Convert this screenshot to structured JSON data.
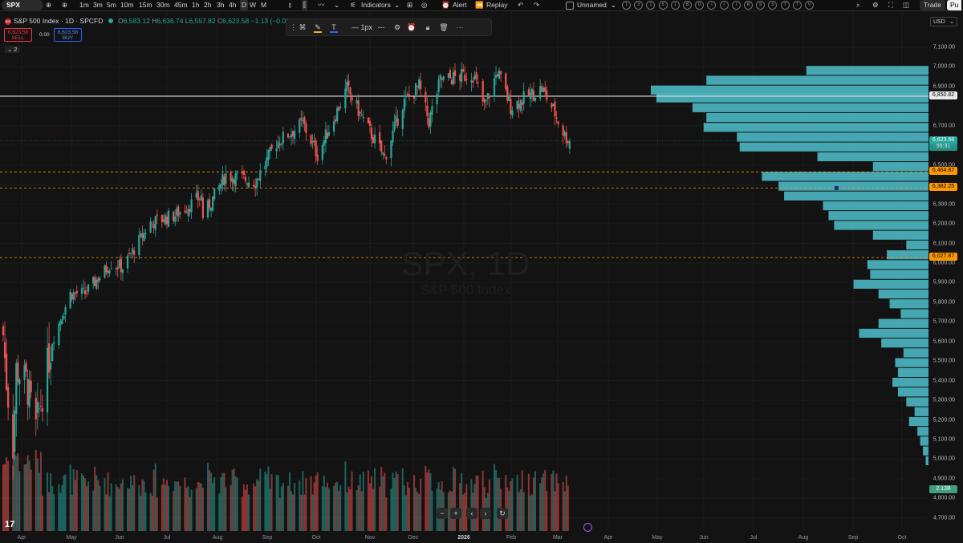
{
  "toolbar": {
    "symbol": "SPX",
    "timeframes": [
      "1m",
      "3m",
      "5m",
      "10m",
      "15m",
      "30m",
      "45m",
      "1h",
      "2h",
      "3h",
      "4h",
      "D",
      "W",
      "M"
    ],
    "active_timeframe": "D",
    "indicators_label": "Indicators",
    "alert_label": "Alert",
    "replay_label": "Replay",
    "layout_name": "Unnamed",
    "quick_circles": [
      "1",
      "3",
      "1",
      "5",
      "1",
      "B",
      "D",
      "I",
      "I",
      "I",
      "R",
      "S",
      "S",
      "T",
      "T",
      "V"
    ],
    "trade_label": "Trade",
    "publish_label": "Pu"
  },
  "legend": {
    "title": "S&P 500 Index · 1D · SPCFD",
    "o_label": "O",
    "open": "6,583.12",
    "h_label": "H",
    "high": "6,636.74",
    "l_label": "L",
    "low": "6,557.82",
    "c_label": "C",
    "close": "6,623.58",
    "change": "−1.13 (−0.02%)",
    "sell_price": "6,623.58",
    "sell_label": "SELL",
    "spread": "0.00",
    "buy_price": "6,623.58",
    "buy_label": "BUY",
    "collapse_count": "2"
  },
  "drawing_toolbar": {
    "width_label": "1px"
  },
  "watermark": {
    "symbol": "SPX, 1D",
    "name": "S&P 500 Index"
  },
  "price_axis": {
    "currency": "USD",
    "ticks": [
      "7,100.00",
      "7,000.00",
      "6,900.00",
      "6,700.00",
      "6,600.00",
      "6,500.00",
      "6,300.00",
      "6,200.00",
      "6,100.00",
      "6,000.00",
      "5,900.00",
      "5,800.00",
      "5,700.00",
      "5,600.00",
      "5,500.00",
      "5,400.00",
      "5,300.00",
      "5,200.00",
      "5,100.00",
      "5,000.00",
      "4,900.00",
      "4,800.00",
      "4,700.00"
    ],
    "tick_values": [
      7100,
      7000,
      6900,
      6700,
      6600,
      6500,
      6300,
      6200,
      6100,
      6000,
      5900,
      5800,
      5700,
      5600,
      5500,
      5400,
      5300,
      5200,
      5100,
      5000,
      4900,
      4800,
      4700
    ],
    "tags": {
      "white_line": "6,850.82",
      "last_price": "6,623.58",
      "countdown": "55:31",
      "level_1": "6,464.87",
      "level_2": "6,382.25",
      "level_3": "6,027.87",
      "volume": "2.13B"
    }
  },
  "time_axis": {
    "labels": [
      "Apr",
      "May",
      "Jun",
      "Jul",
      "Aug",
      "Sep",
      "Oct",
      "Nov",
      "Dec",
      "2026",
      "Feb",
      "Mar",
      "Apr",
      "May",
      "Jun",
      "Jul",
      "Aug",
      "Sep",
      "Oct"
    ]
  },
  "chart_data": {
    "type": "candlestick",
    "symbol": "SPX",
    "name": "S&P 500 Index",
    "interval": "1D",
    "y_range": [
      4660,
      7140
    ],
    "y_scale": "linear",
    "horizontal_levels": [
      6850.82,
      6464.87,
      6382.25,
      6027.87
    ],
    "last_price": 6623.58,
    "anchors": [
      {
        "date": "2025-04-01",
        "close": 5633
      },
      {
        "date": "2025-04-03",
        "close": 5396
      },
      {
        "date": "2025-04-07",
        "close": 5062
      },
      {
        "date": "2025-04-09",
        "close": 5456
      },
      {
        "date": "2025-04-15",
        "close": 5395
      },
      {
        "date": "2025-04-21",
        "close": 5158
      },
      {
        "date": "2025-05-01",
        "close": 5605
      },
      {
        "date": "2025-05-12",
        "close": 5844
      },
      {
        "date": "2025-05-21",
        "close": 5845
      },
      {
        "date": "2025-06-06",
        "close": 6000
      },
      {
        "date": "2025-06-13",
        "close": 5977
      },
      {
        "date": "2025-06-30",
        "close": 6205
      },
      {
        "date": "2025-07-15",
        "close": 6244
      },
      {
        "date": "2025-07-31",
        "close": 6339
      },
      {
        "date": "2025-08-01",
        "close": 6238
      },
      {
        "date": "2025-08-15",
        "close": 6449
      },
      {
        "date": "2025-09-02",
        "close": 6415
      },
      {
        "date": "2025-09-15",
        "close": 6615
      },
      {
        "date": "2025-10-01",
        "close": 6711
      },
      {
        "date": "2025-10-10",
        "close": 6552
      },
      {
        "date": "2025-10-28",
        "close": 6890
      },
      {
        "date": "2025-11-07",
        "close": 6728
      },
      {
        "date": "2025-11-20",
        "close": 6538
      },
      {
        "date": "2025-12-01",
        "close": 6812
      },
      {
        "date": "2025-12-11",
        "close": 6901
      },
      {
        "date": "2025-12-17",
        "close": 6721
      },
      {
        "date": "2025-12-24",
        "close": 6932
      },
      {
        "date": "2026-01-13",
        "close": 6963
      },
      {
        "date": "2026-01-20",
        "close": 6796
      },
      {
        "date": "2026-01-28",
        "close": 6978
      },
      {
        "date": "2026-02-05",
        "close": 6798
      },
      {
        "date": "2026-02-13",
        "close": 6836
      },
      {
        "date": "2026-02-24",
        "close": 6890
      },
      {
        "date": "2026-03-03",
        "close": 6780
      },
      {
        "date": "2026-03-10",
        "close": 6650
      },
      {
        "date": "2026-03-13",
        "close": 6623.58
      }
    ],
    "volume_profile": {
      "bins": [
        {
          "price": 6980,
          "volume": 0.44
        },
        {
          "price": 6930,
          "volume": 0.8
        },
        {
          "price": 6880,
          "volume": 1.0
        },
        {
          "price": 6840,
          "volume": 0.98
        },
        {
          "price": 6790,
          "volume": 0.85
        },
        {
          "price": 6740,
          "volume": 0.8
        },
        {
          "price": 6690,
          "volume": 0.81
        },
        {
          "price": 6640,
          "volume": 0.69
        },
        {
          "price": 6590,
          "volume": 0.68
        },
        {
          "price": 6540,
          "volume": 0.4
        },
        {
          "price": 6490,
          "volume": 0.2
        },
        {
          "price": 6440,
          "volume": 0.6
        },
        {
          "price": 6390,
          "volume": 0.54
        },
        {
          "price": 6340,
          "volume": 0.52
        },
        {
          "price": 6290,
          "volume": 0.38
        },
        {
          "price": 6240,
          "volume": 0.36
        },
        {
          "price": 6190,
          "volume": 0.34
        },
        {
          "price": 6140,
          "volume": 0.2
        },
        {
          "price": 6090,
          "volume": 0.08
        },
        {
          "price": 6040,
          "volume": 0.15
        },
        {
          "price": 5990,
          "volume": 0.22
        },
        {
          "price": 5940,
          "volume": 0.21
        },
        {
          "price": 5890,
          "volume": 0.27
        },
        {
          "price": 5840,
          "volume": 0.18
        },
        {
          "price": 5790,
          "volume": 0.14
        },
        {
          "price": 5740,
          "volume": 0.1
        },
        {
          "price": 5690,
          "volume": 0.18
        },
        {
          "price": 5640,
          "volume": 0.25
        },
        {
          "price": 5590,
          "volume": 0.17
        },
        {
          "price": 5540,
          "volume": 0.09
        },
        {
          "price": 5490,
          "volume": 0.12
        },
        {
          "price": 5440,
          "volume": 0.11
        },
        {
          "price": 5390,
          "volume": 0.13
        },
        {
          "price": 5340,
          "volume": 0.11
        },
        {
          "price": 5290,
          "volume": 0.08
        },
        {
          "price": 5240,
          "volume": 0.05
        },
        {
          "price": 5190,
          "volume": 0.07
        },
        {
          "price": 5140,
          "volume": 0.04
        },
        {
          "price": 5090,
          "volume": 0.03
        },
        {
          "price": 5040,
          "volume": 0.02
        },
        {
          "price": 4990,
          "volume": 0.01
        }
      ]
    },
    "colors": {
      "up": "#26a69a",
      "down": "#ef5350",
      "profile": "#4cb8c4",
      "level": "#ff9800",
      "background": "#131313"
    }
  }
}
